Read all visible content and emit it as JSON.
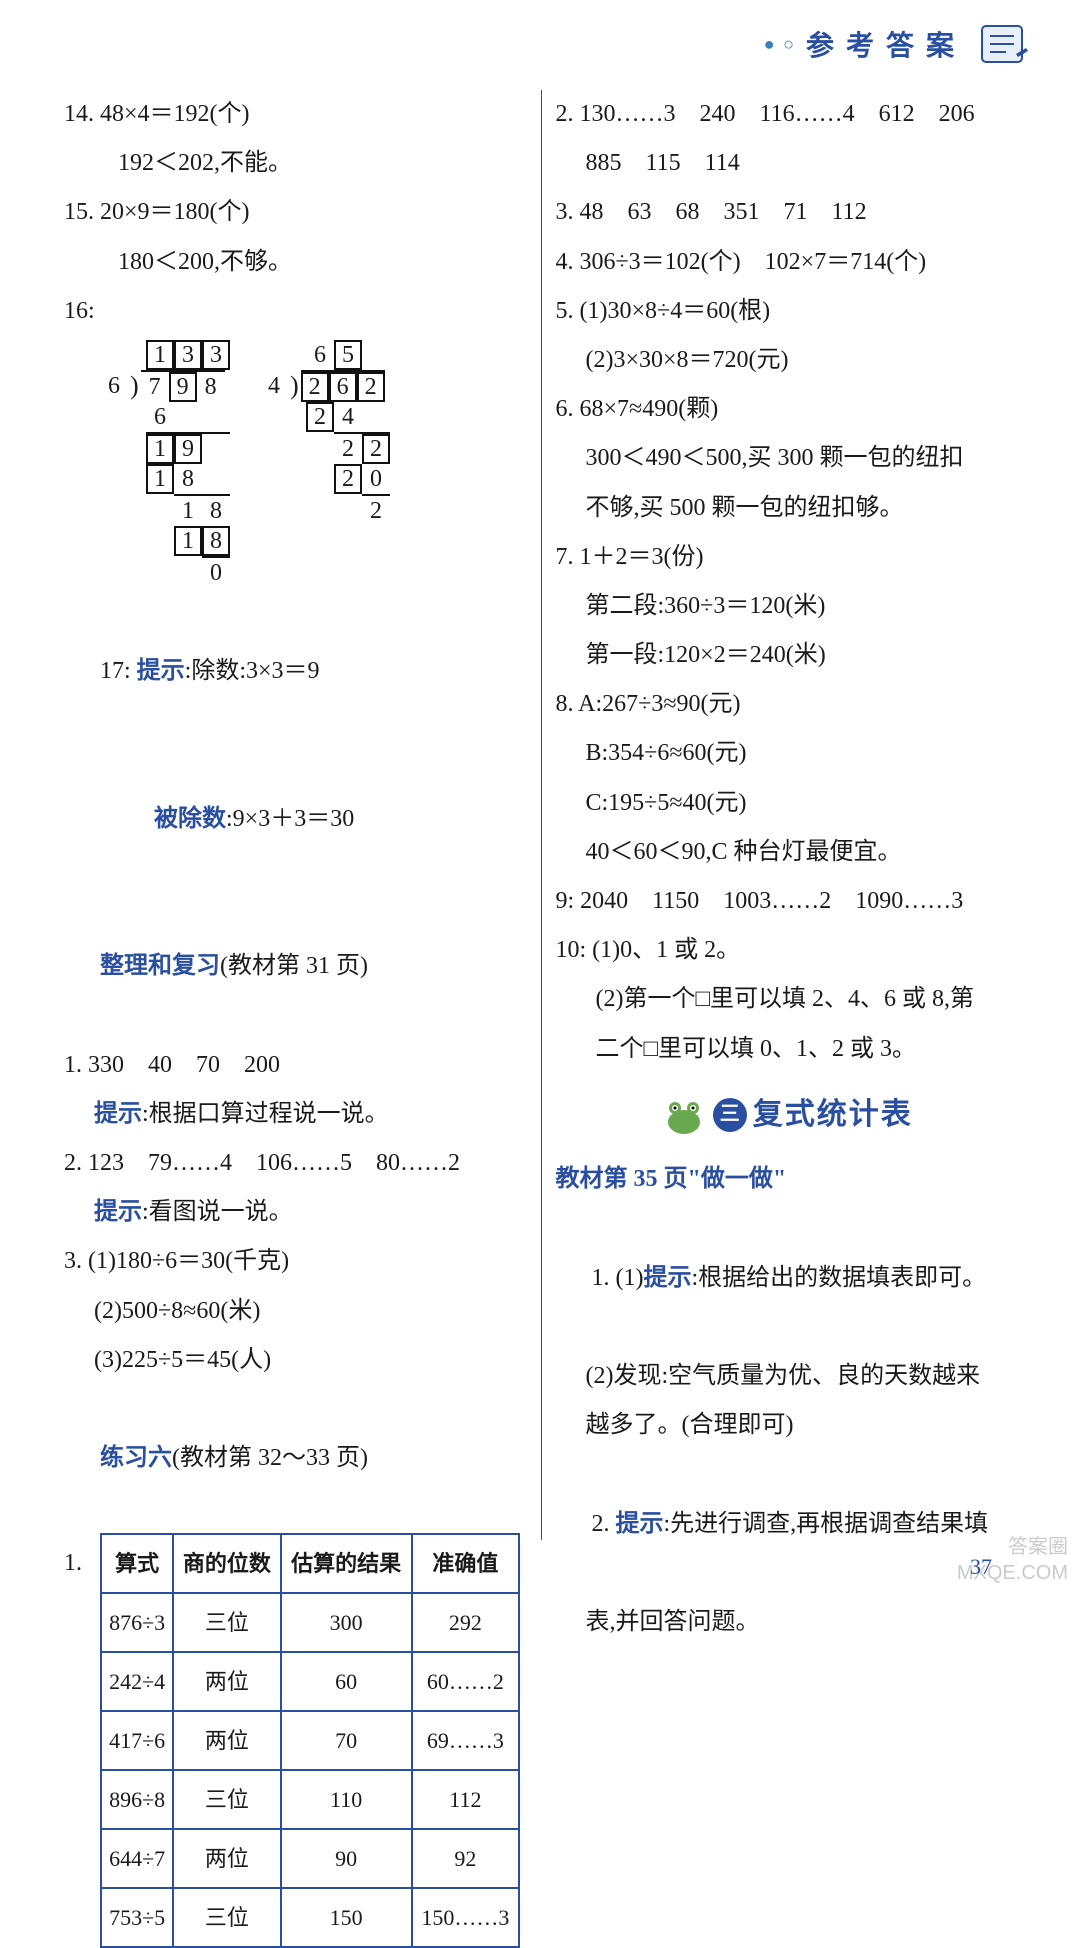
{
  "header": {
    "title": "参考答案"
  },
  "left": {
    "p14a": "14. 48×4＝192(个)",
    "p14b": "192＜202,不能。",
    "p15a": "15. 20×9＝180(个)",
    "p15b": "180＜200,不够。",
    "p16": "16:",
    "longdiv1": {
      "quotient": [
        "1",
        "3",
        "3"
      ],
      "quotient_boxed": [
        true,
        true,
        true
      ],
      "divisor": "6",
      "dividend": [
        "7",
        "9",
        "8"
      ],
      "dividend_boxed": [
        false,
        true,
        false
      ],
      "steps": [
        {
          "shift": 1,
          "cells": [
            "6"
          ],
          "boxed": [
            false
          ],
          "bar": false
        },
        {
          "shift": 1,
          "cells": [
            "1",
            "9"
          ],
          "boxed": [
            true,
            true
          ],
          "bar": true
        },
        {
          "shift": 1,
          "cells": [
            "1",
            "8"
          ],
          "boxed": [
            true,
            false
          ],
          "bar": false
        },
        {
          "shift": 2,
          "cells": [
            "1",
            "8"
          ],
          "boxed": [
            false,
            false
          ],
          "bar": true
        },
        {
          "shift": 2,
          "cells": [
            "1",
            "8"
          ],
          "boxed": [
            true,
            true
          ],
          "bar": false
        },
        {
          "shift": 3,
          "cells": [
            "0"
          ],
          "boxed": [
            false
          ],
          "bar": true
        }
      ]
    },
    "longdiv2": {
      "quotient": [
        "6",
        "5"
      ],
      "quotient_boxed": [
        false,
        true
      ],
      "divisor": "4",
      "dividend": [
        "2",
        "6",
        "2"
      ],
      "dividend_boxed": [
        true,
        true,
        true
      ],
      "steps": [
        {
          "shift": 1,
          "cells": [
            "2",
            "4"
          ],
          "boxed": [
            true,
            false
          ],
          "bar": false
        },
        {
          "shift": 2,
          "cells": [
            "2",
            "2"
          ],
          "boxed": [
            false,
            true
          ],
          "bar": true
        },
        {
          "shift": 2,
          "cells": [
            "2",
            "0"
          ],
          "boxed": [
            true,
            false
          ],
          "bar": false
        },
        {
          "shift": 3,
          "cells": [
            "2"
          ],
          "boxed": [
            false
          ],
          "bar": true
        }
      ]
    },
    "p17a": "17: 提示:除数:3×3＝9",
    "p17b": "被除数:9×3＋3＝30",
    "sect1": "整理和复习",
    "sect1_ref": "(教材第 31 页)",
    "s1_1": "1. 330　40　70　200",
    "s1_1b": "提示:根据口算过程说一说。",
    "s1_2": "2. 123　79……4　106……5　80……2",
    "s1_2b": "提示:看图说一说。",
    "s1_3a": "3. (1)180÷6＝30(千克)",
    "s1_3b": "(2)500÷8≈60(米)",
    "s1_3c": "(3)225÷5＝45(人)",
    "sect2": "练习六",
    "sect2_ref": "(教材第 32～33 页)",
    "table_prefix": "1.",
    "table": {
      "columns": [
        "算式",
        "商的位数",
        "估算的结果",
        "准确值"
      ],
      "rows": [
        [
          "876÷3",
          "三位",
          "300",
          "292"
        ],
        [
          "242÷4",
          "两位",
          "60",
          "60……2"
        ],
        [
          "417÷6",
          "两位",
          "70",
          "69……3"
        ],
        [
          "896÷8",
          "三位",
          "110",
          "112"
        ],
        [
          "644÷7",
          "两位",
          "90",
          "92"
        ],
        [
          "753÷5",
          "三位",
          "150",
          "150……3"
        ]
      ],
      "border_color": "#2a4fa0",
      "header_fontweight": "bold"
    }
  },
  "right": {
    "p2": "2. 130……3　240　116……4　612　206",
    "p2b": "885　115　114",
    "p3": "3. 48　63　68　351　71　112",
    "p4": "4. 306÷3＝102(个)　102×7＝714(个)",
    "p5a": "5. (1)30×8÷4＝60(根)",
    "p5b": "(2)3×30×8＝720(元)",
    "p6a": "6. 68×7≈490(颗)",
    "p6b": "300＜490＜500,买 300 颗一包的纽扣",
    "p6c": "不够,买 500 颗一包的纽扣够。",
    "p7a": "7. 1＋2＝3(份)",
    "p7b": "第二段:360÷3＝120(米)",
    "p7c": "第一段:120×2＝240(米)",
    "p8a": "8. A:267÷3≈90(元)",
    "p8b": "B:354÷6≈60(元)",
    "p8c": "C:195÷5≈40(元)",
    "p8d": "40＜60＜90,C 种台灯最便宜。",
    "p9": "9: 2040　1150　1003……2　1090……3",
    "p10a": "10: (1)0、1 或 2。",
    "p10b": "(2)第一个□里可以填 2、4、6 或 8,第",
    "p10c": "二个□里可以填 0、1、2 或 3。",
    "section_badge": "三",
    "section_label": "复式统计表",
    "sect3": "教材第 35 页\"做一做\"",
    "s3_1a_pre": "1. (1)",
    "s3_1a_hint": "提示",
    "s3_1a_post": ":根据给出的数据填表即可。",
    "s3_1b": "(2)发现:空气质量为优、良的天数越来",
    "s3_1c": "越多了。(合理即可)",
    "s3_2_pre": "2. ",
    "s3_2_hint": "提示",
    "s3_2_post": ":先进行调查,再根据调查结果填",
    "s3_2b": "表,并回答问题。"
  },
  "page_number": "37",
  "watermark": {
    "line1": "答案圈",
    "line2": "MXQE.COM"
  },
  "colors": {
    "accent": "#2a4fa0",
    "text": "#1a1a1a",
    "bg": "#ffffff"
  }
}
